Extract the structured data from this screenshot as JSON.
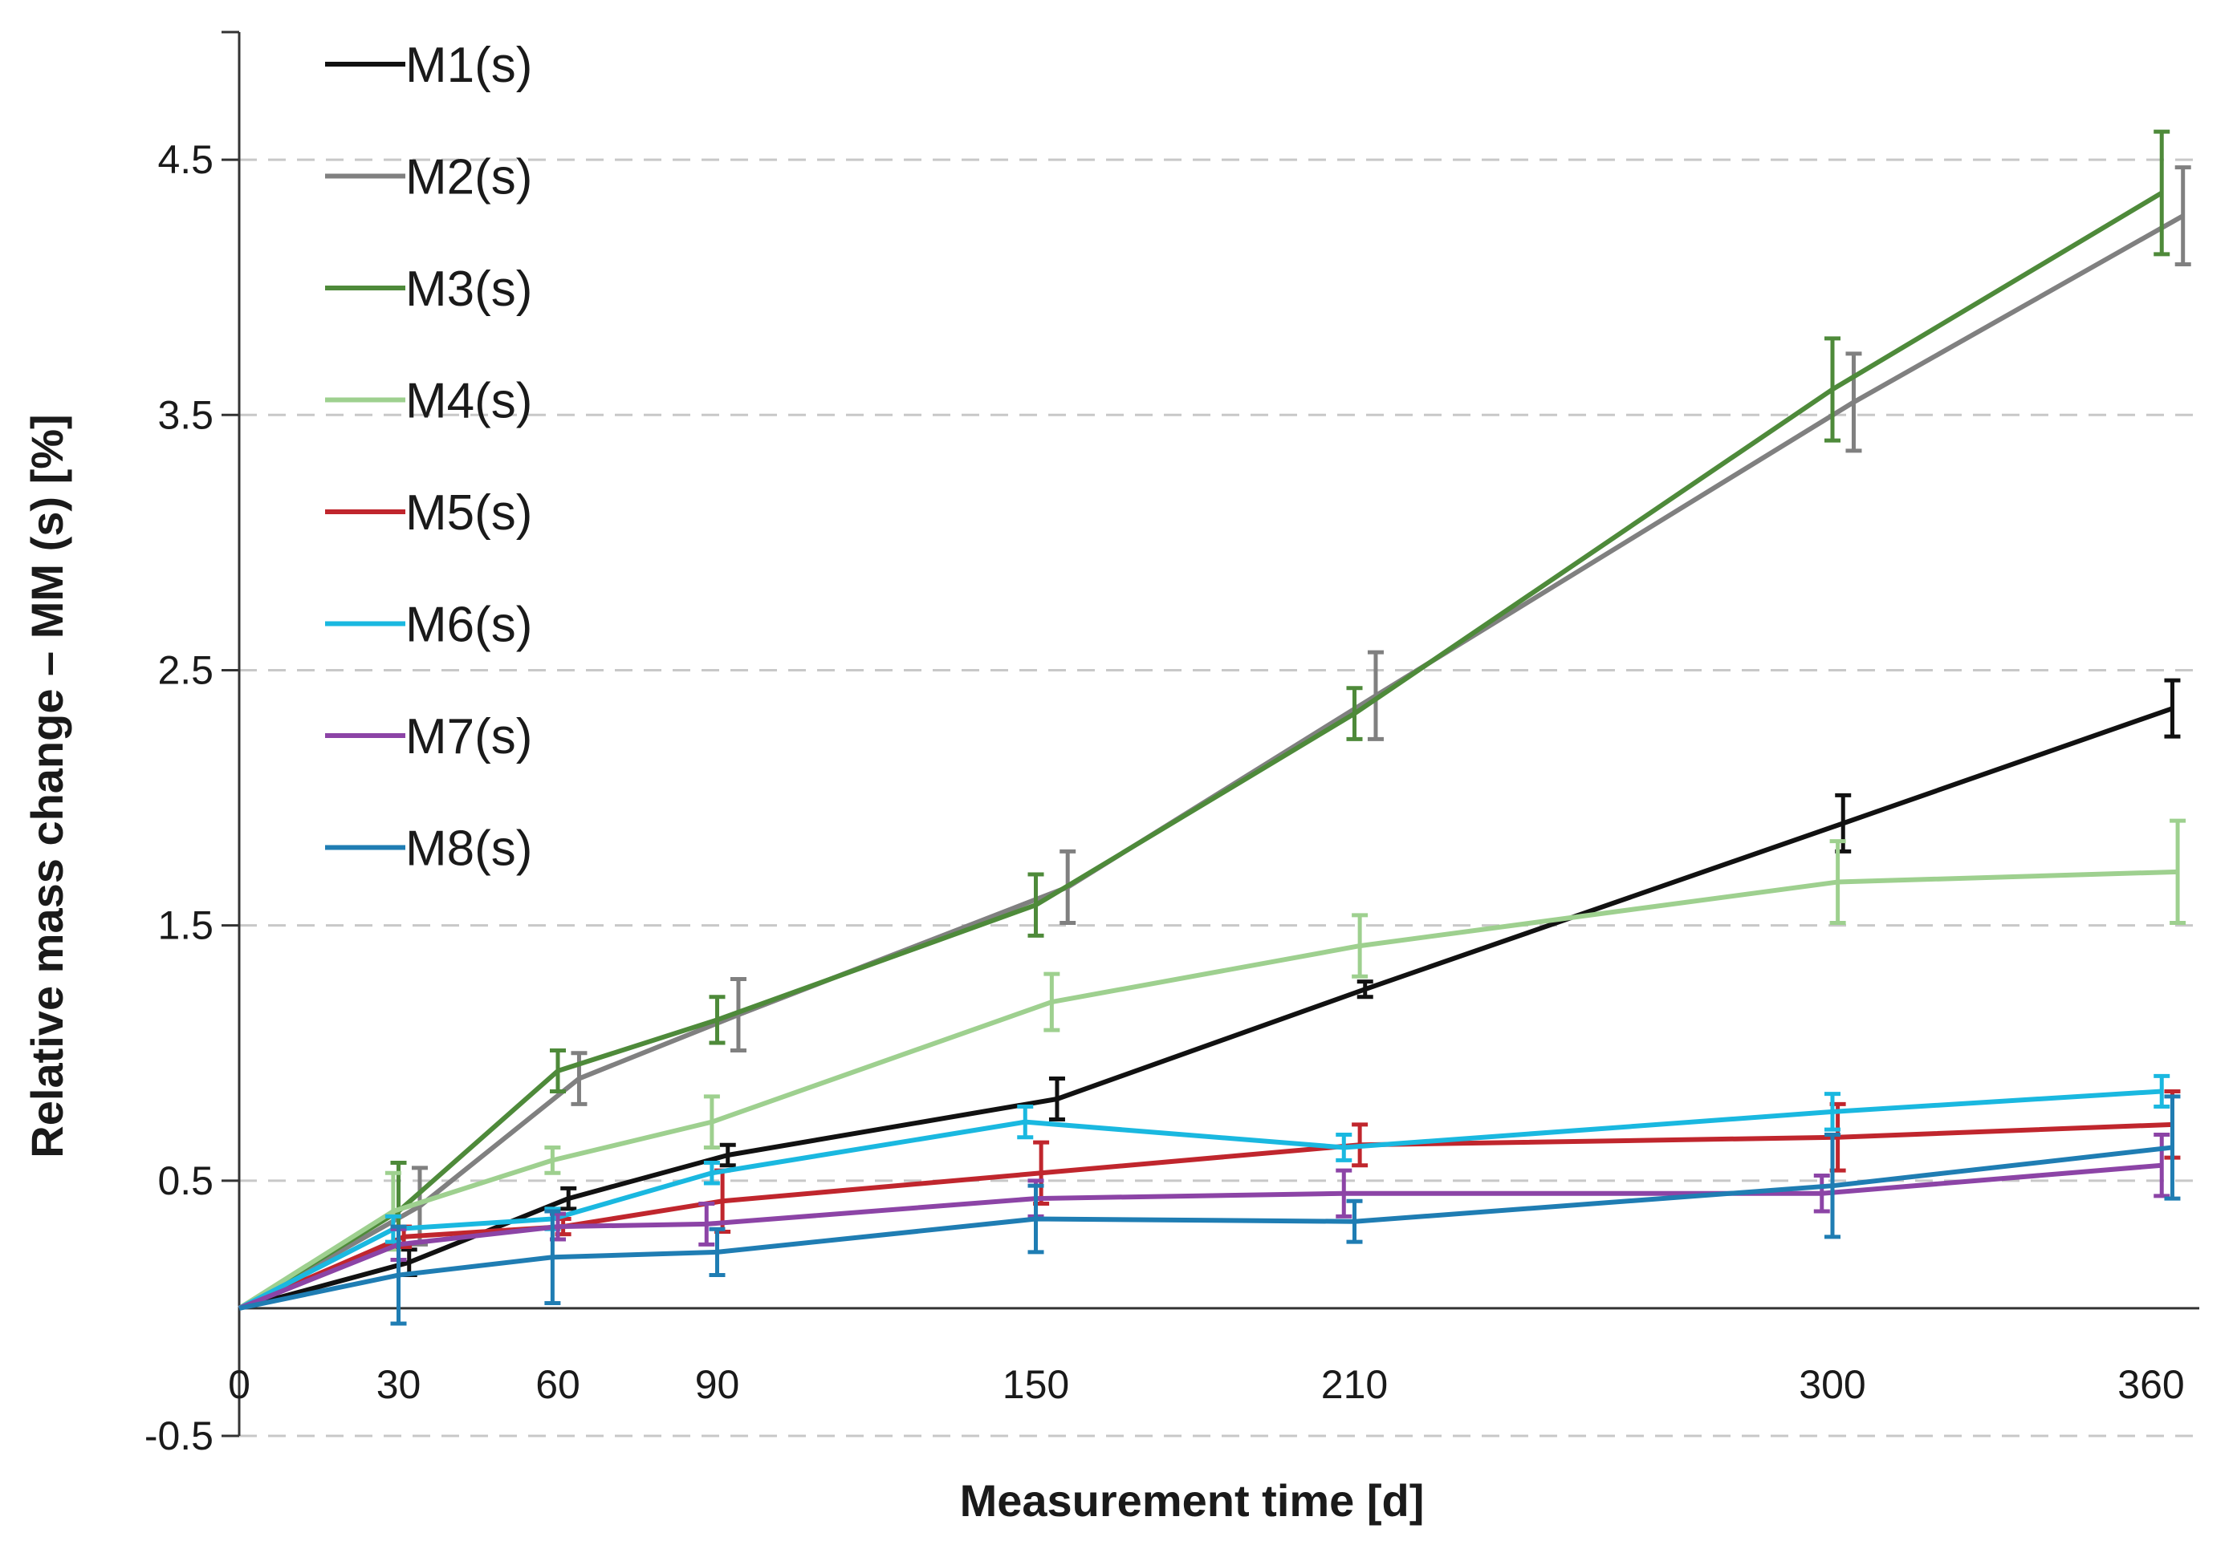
{
  "chart_data": {
    "type": "line",
    "title": "",
    "xlabel": "Measurement time [d]",
    "ylabel": "Relative mass change – MM (s) [%]",
    "x": [
      0,
      30,
      60,
      90,
      150,
      210,
      300,
      360
    ],
    "xticks": [
      "0",
      "30",
      "60",
      "90",
      "150",
      "210",
      "300",
      "360"
    ],
    "yticks": [
      "-0.5",
      "0.5",
      "1.5",
      "2.5",
      "3.5",
      "4.5"
    ],
    "xlim": [
      0,
      360
    ],
    "ylim": [
      -0.5,
      5.0
    ],
    "grid": "horizontal dashed",
    "legend_position": "top-left",
    "series": [
      {
        "name": "M1(s)",
        "color": "#111111",
        "x": [
          0,
          32,
          62,
          92,
          154,
          212,
          302,
          364
        ],
        "values": [
          0,
          0.18,
          0.43,
          0.6,
          0.82,
          1.25,
          1.9,
          2.35
        ],
        "errors": [
          0,
          0.05,
          0.04,
          0.04,
          0.08,
          0.03,
          0.11,
          0.11
        ]
      },
      {
        "name": "M2(s)",
        "color": "#808080",
        "x": [
          0,
          34,
          64,
          94,
          156,
          214,
          304,
          366
        ],
        "values": [
          0,
          0.4,
          0.9,
          1.15,
          1.65,
          2.4,
          3.55,
          4.28
        ],
        "errors": [
          0,
          0.15,
          0.1,
          0.14,
          0.14,
          0.17,
          0.19,
          0.19
        ]
      },
      {
        "name": "M3(s)",
        "color": "#4e8a3a",
        "x": [
          0,
          30,
          60,
          90,
          150,
          210,
          300,
          362
        ],
        "values": [
          0,
          0.38,
          0.93,
          1.13,
          1.58,
          2.33,
          3.6,
          4.37
        ],
        "errors": [
          0,
          0.19,
          0.08,
          0.09,
          0.12,
          0.1,
          0.2,
          0.24
        ]
      },
      {
        "name": "M4(s)",
        "color": "#9ed08f",
        "x": [
          0,
          29,
          59,
          89,
          153,
          211,
          301,
          365
        ],
        "values": [
          0,
          0.38,
          0.58,
          0.73,
          1.2,
          1.42,
          1.67,
          1.71
        ],
        "errors": [
          0,
          0.15,
          0.05,
          0.1,
          0.11,
          0.12,
          0.16,
          0.2
        ]
      },
      {
        "name": "M5(s)",
        "color": "#c0262d",
        "x": [
          0,
          31,
          61,
          91,
          151,
          211,
          301,
          364
        ],
        "values": [
          0,
          0.28,
          0.32,
          0.42,
          0.53,
          0.64,
          0.67,
          0.72
        ],
        "errors": [
          0,
          0.04,
          0.03,
          0.12,
          0.12,
          0.08,
          0.13,
          0.13
        ]
      },
      {
        "name": "M6(s)",
        "color": "#1ab8e0",
        "x": [
          0,
          29,
          59,
          89,
          148,
          208,
          300,
          362
        ],
        "values": [
          0,
          0.31,
          0.35,
          0.53,
          0.73,
          0.63,
          0.77,
          0.85
        ],
        "errors": [
          0,
          0.05,
          0.04,
          0.04,
          0.06,
          0.05,
          0.07,
          0.06
        ]
      },
      {
        "name": "M7(s)",
        "color": "#8c44a6",
        "x": [
          0,
          30,
          60,
          88,
          150,
          208,
          298,
          362
        ],
        "values": [
          0,
          0.25,
          0.32,
          0.33,
          0.43,
          0.45,
          0.45,
          0.56
        ],
        "errors": [
          0,
          0.06,
          0.05,
          0.08,
          0.07,
          0.09,
          0.07,
          0.12
        ]
      },
      {
        "name": "M8(s)",
        "color": "#1f7db3",
        "x": [
          0,
          30,
          59,
          90,
          150,
          210,
          300,
          364
        ],
        "values": [
          0,
          0.13,
          0.2,
          0.22,
          0.35,
          0.34,
          0.48,
          0.63
        ],
        "errors": [
          0,
          0.19,
          0.18,
          0.09,
          0.13,
          0.08,
          0.2,
          0.2
        ]
      }
    ]
  }
}
